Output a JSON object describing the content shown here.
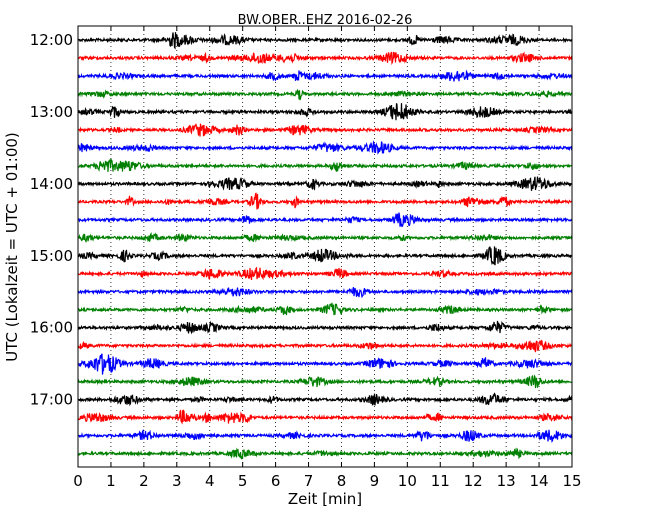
{
  "chart_data": {
    "type": "line",
    "title": "BW.OBER..EHZ 2016-02-26",
    "xlabel": "Zeit  [min]",
    "ylabel": "UTC (Lokalzeit = UTC + 01:00)",
    "xlim": [
      0,
      15
    ],
    "x_ticks": [
      "0",
      "1",
      "2",
      "3",
      "4",
      "5",
      "6",
      "7",
      "8",
      "9",
      "10",
      "11",
      "12",
      "13",
      "14",
      "15"
    ],
    "y_tick_labels": [
      "12:00",
      "13:00",
      "14:00",
      "15:00",
      "16:00",
      "17:00"
    ],
    "grid": "vertical dotted",
    "trace_colors": [
      "#000000",
      "#ff0000",
      "#0000ff",
      "#008000"
    ],
    "traces": [
      {
        "start": "12:00",
        "color": "#000000"
      },
      {
        "start": "12:15",
        "color": "#ff0000"
      },
      {
        "start": "12:30",
        "color": "#0000ff"
      },
      {
        "start": "12:45",
        "color": "#008000"
      },
      {
        "start": "13:00",
        "color": "#000000"
      },
      {
        "start": "13:15",
        "color": "#ff0000"
      },
      {
        "start": "13:30",
        "color": "#0000ff"
      },
      {
        "start": "13:45",
        "color": "#008000"
      },
      {
        "start": "14:00",
        "color": "#000000"
      },
      {
        "start": "14:15",
        "color": "#ff0000"
      },
      {
        "start": "14:30",
        "color": "#0000ff"
      },
      {
        "start": "14:45",
        "color": "#008000"
      },
      {
        "start": "15:00",
        "color": "#000000"
      },
      {
        "start": "15:15",
        "color": "#ff0000"
      },
      {
        "start": "15:30",
        "color": "#0000ff"
      },
      {
        "start": "15:45",
        "color": "#008000"
      },
      {
        "start": "16:00",
        "color": "#000000"
      },
      {
        "start": "16:15",
        "color": "#ff0000"
      },
      {
        "start": "16:30",
        "color": "#0000ff"
      },
      {
        "start": "16:45",
        "color": "#008000"
      },
      {
        "start": "17:00",
        "color": "#000000"
      },
      {
        "start": "17:15",
        "color": "#ff0000"
      },
      {
        "start": "17:30",
        "color": "#0000ff"
      },
      {
        "start": "17:45",
        "color": "#008000"
      }
    ]
  }
}
